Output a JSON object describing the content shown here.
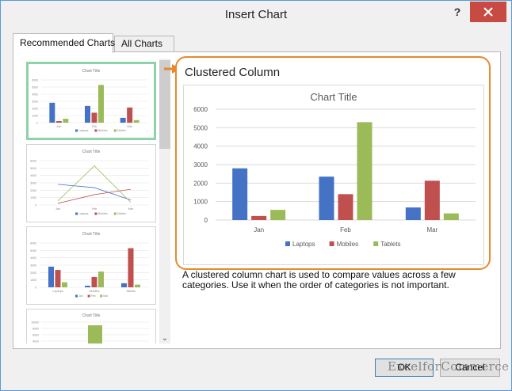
{
  "window": {
    "title": "Insert Chart",
    "help_label": "?"
  },
  "tabs": [
    {
      "label": "Recommended Charts",
      "active": true
    },
    {
      "label": "All Charts",
      "active": false
    }
  ],
  "thumbnails": [
    {
      "title": "Chart Title",
      "type": "bar",
      "yticks": [
        "6000",
        "5000",
        "4000",
        "3000",
        "2000",
        "1000",
        "0"
      ],
      "categories": [
        "Jan",
        "Feb",
        "Mar"
      ],
      "legend": [
        "Laptops",
        "Mobiles",
        "Tablets"
      ]
    },
    {
      "title": "Chart Title",
      "type": "line",
      "yticks": [
        "6000",
        "5000",
        "4000",
        "3000",
        "2000",
        "1000",
        "0"
      ],
      "categories": [
        "Jan",
        "Feb",
        "Mar"
      ],
      "legend": [
        "Laptops",
        "Mobiles",
        "Tablets"
      ]
    },
    {
      "title": "Chart Title",
      "type": "bar-transposed",
      "yticks": [
        "6000",
        "5000",
        "4000",
        "3000",
        "2000",
        "1000",
        "0"
      ],
      "categories": [
        "Laptops",
        "Mobiles",
        "Tablets"
      ],
      "legend": [
        "Jan",
        "Feb",
        "Mar"
      ]
    },
    {
      "title": "Chart Title",
      "type": "stacked",
      "yticks": [
        "10000",
        "8000",
        "6000",
        "4000"
      ]
    }
  ],
  "preview": {
    "heading": "Clustered Column",
    "description": "A clustered column chart is used to compare values across a few categories. Use it when the order of categories is not important."
  },
  "chart_data": {
    "type": "bar",
    "title": "Chart Title",
    "categories": [
      "Jan",
      "Feb",
      "Mar"
    ],
    "series": [
      {
        "name": "Laptops",
        "color": "#4472c4",
        "values": [
          2800,
          2350,
          680
        ]
      },
      {
        "name": "Mobiles",
        "color": "#c0504d",
        "values": [
          220,
          1400,
          2130
        ]
      },
      {
        "name": "Tablets",
        "color": "#9bbb59",
        "values": [
          550,
          5300,
          360
        ]
      }
    ],
    "ylim": [
      0,
      6000
    ],
    "yticks": [
      "6000",
      "5000",
      "4000",
      "3000",
      "2000",
      "1000",
      "0"
    ],
    "grid": true,
    "legend_position": "bottom"
  },
  "buttons": {
    "ok": "OK",
    "cancel": "Cancel"
  },
  "watermark": "ExcelforCommerce",
  "colors": {
    "accent_orange": "#e58a2e",
    "selected_thumb": "#8fd1a8",
    "close_red": "#c74b43"
  }
}
